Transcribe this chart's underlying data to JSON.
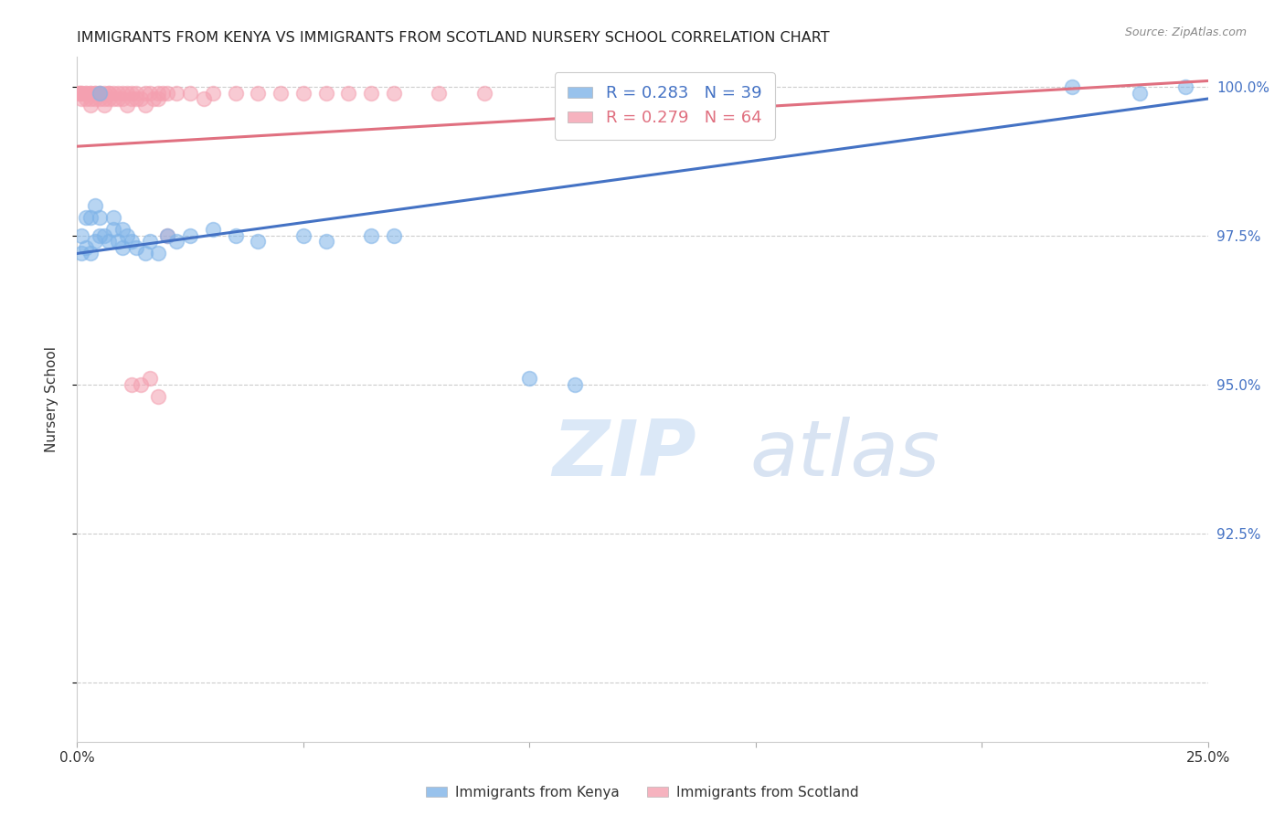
{
  "title": "IMMIGRANTS FROM KENYA VS IMMIGRANTS FROM SCOTLAND NURSERY SCHOOL CORRELATION CHART",
  "source": "Source: ZipAtlas.com",
  "ylabel": "Nursery School",
  "xlim": [
    0.0,
    0.25
  ],
  "ylim": [
    0.89,
    1.005
  ],
  "xticks": [
    0.0,
    0.05,
    0.1,
    0.15,
    0.2,
    0.25
  ],
  "xticklabels": [
    "0.0%",
    "",
    "",
    "",
    "",
    "25.0%"
  ],
  "yticks": [
    0.9,
    0.925,
    0.95,
    0.975,
    1.0
  ],
  "yticklabels": [
    "",
    "92.5%",
    "95.0%",
    "97.5%",
    "100.0%"
  ],
  "kenya_color": "#7eb3e8",
  "scotland_color": "#f4a0b0",
  "kenya_line_color": "#4472c4",
  "scotland_line_color": "#e07080",
  "legend_kenya_label": "R = 0.283   N = 39",
  "legend_scotland_label": "R = 0.279   N = 64",
  "watermark": "ZIPatlas",
  "kenya_x": [
    0.001,
    0.001,
    0.002,
    0.002,
    0.003,
    0.003,
    0.004,
    0.004,
    0.005,
    0.005,
    0.005,
    0.006,
    0.007,
    0.008,
    0.008,
    0.009,
    0.01,
    0.01,
    0.011,
    0.012,
    0.013,
    0.015,
    0.016,
    0.018,
    0.02,
    0.022,
    0.025,
    0.03,
    0.035,
    0.04,
    0.05,
    0.055,
    0.065,
    0.07,
    0.1,
    0.11,
    0.22,
    0.235,
    0.245
  ],
  "kenya_y": [
    0.972,
    0.975,
    0.973,
    0.978,
    0.972,
    0.978,
    0.974,
    0.98,
    0.975,
    0.978,
    0.999,
    0.975,
    0.974,
    0.978,
    0.976,
    0.974,
    0.973,
    0.976,
    0.975,
    0.974,
    0.973,
    0.972,
    0.974,
    0.972,
    0.975,
    0.974,
    0.975,
    0.976,
    0.975,
    0.974,
    0.975,
    0.974,
    0.975,
    0.975,
    0.951,
    0.95,
    1.0,
    0.999,
    1.0
  ],
  "scotland_x": [
    0.0003,
    0.0005,
    0.001,
    0.001,
    0.001,
    0.002,
    0.002,
    0.002,
    0.003,
    0.003,
    0.003,
    0.003,
    0.004,
    0.004,
    0.004,
    0.005,
    0.005,
    0.005,
    0.006,
    0.006,
    0.006,
    0.007,
    0.007,
    0.007,
    0.008,
    0.008,
    0.009,
    0.009,
    0.01,
    0.01,
    0.011,
    0.011,
    0.012,
    0.012,
    0.013,
    0.013,
    0.014,
    0.015,
    0.015,
    0.016,
    0.017,
    0.018,
    0.018,
    0.019,
    0.02,
    0.022,
    0.025,
    0.028,
    0.03,
    0.035,
    0.04,
    0.045,
    0.05,
    0.055,
    0.06,
    0.065,
    0.07,
    0.08,
    0.09,
    0.012,
    0.014,
    0.016,
    0.018,
    0.02
  ],
  "scotland_y": [
    0.999,
    0.999,
    0.999,
    0.998,
    0.999,
    0.999,
    0.998,
    0.999,
    0.999,
    0.998,
    0.999,
    0.997,
    0.999,
    0.998,
    0.999,
    0.999,
    0.998,
    0.999,
    0.999,
    0.998,
    0.997,
    0.999,
    0.998,
    0.999,
    0.999,
    0.998,
    0.999,
    0.998,
    0.999,
    0.998,
    0.999,
    0.997,
    0.999,
    0.998,
    0.999,
    0.998,
    0.998,
    0.999,
    0.997,
    0.999,
    0.998,
    0.999,
    0.998,
    0.999,
    0.999,
    0.999,
    0.999,
    0.998,
    0.999,
    0.999,
    0.999,
    0.999,
    0.999,
    0.999,
    0.999,
    0.999,
    0.999,
    0.999,
    0.999,
    0.95,
    0.95,
    0.951,
    0.948,
    0.975
  ],
  "kenya_line_x": [
    0.0,
    0.25
  ],
  "kenya_line_y": [
    0.972,
    0.998
  ],
  "scotland_line_x": [
    0.0,
    0.25
  ],
  "scotland_line_y": [
    0.99,
    1.001
  ]
}
